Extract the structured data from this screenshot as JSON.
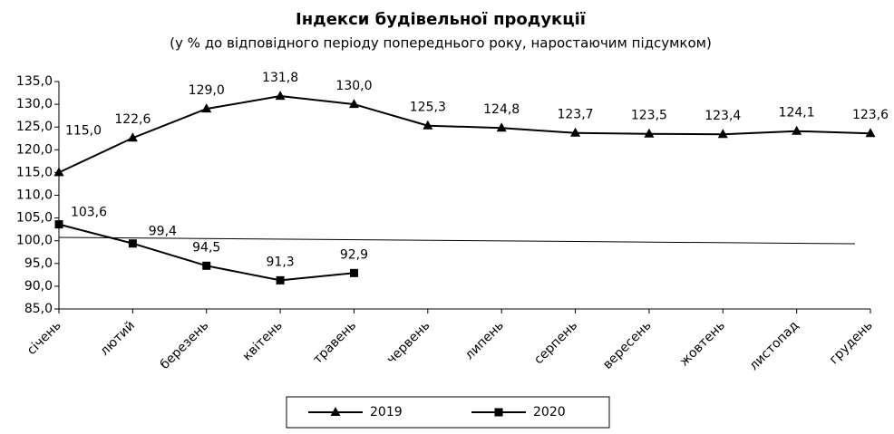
{
  "chart_data": {
    "type": "line",
    "title": "Індекси будівельної продукції",
    "subtitle": "(у % до відповідного періоду попереднього року, наростаючим підсумком)",
    "categories": [
      "січень",
      "лютий",
      "березень",
      "квітень",
      "травень",
      "червень",
      "липень",
      "серпень",
      "вересень",
      "жовтень",
      "листопад",
      "грудень"
    ],
    "series": [
      {
        "name": "2019",
        "color": "#000000",
        "marker": "triangle",
        "values": [
          115.0,
          122.6,
          129.0,
          131.8,
          130.0,
          125.3,
          124.8,
          123.7,
          123.5,
          123.4,
          124.1,
          123.6
        ],
        "value_labels": [
          "115,0",
          "122,6",
          "129,0",
          "131,8",
          "130,0",
          "125,3",
          "124,8",
          "123,7",
          "123,5",
          "123,4",
          "124,1",
          "123,6"
        ]
      },
      {
        "name": "2020",
        "color": "#000000",
        "marker": "square",
        "values": [
          103.6,
          99.4,
          94.5,
          91.3,
          92.9,
          null,
          null,
          null,
          null,
          null,
          null,
          null
        ],
        "value_labels": [
          "103,6",
          "99,4",
          "94,5",
          "91,3",
          "92,9",
          null,
          null,
          null,
          null,
          null,
          null,
          null
        ]
      }
    ],
    "ylim": [
      85,
      135
    ],
    "yticks": [
      {
        "value": 85,
        "label": "85,0"
      },
      {
        "value": 90,
        "label": "90,0"
      },
      {
        "value": 95,
        "label": "95,0"
      },
      {
        "value": 100,
        "label": "100,0"
      },
      {
        "value": 105,
        "label": "105,0"
      },
      {
        "value": 110,
        "label": "110,0"
      },
      {
        "value": 115,
        "label": "115,0"
      },
      {
        "value": 120,
        "label": "120,0"
      },
      {
        "value": 125,
        "label": "125,0"
      },
      {
        "value": 130,
        "label": "130,0"
      },
      {
        "value": 135,
        "label": "135,0"
      }
    ],
    "legend": "bottom"
  }
}
